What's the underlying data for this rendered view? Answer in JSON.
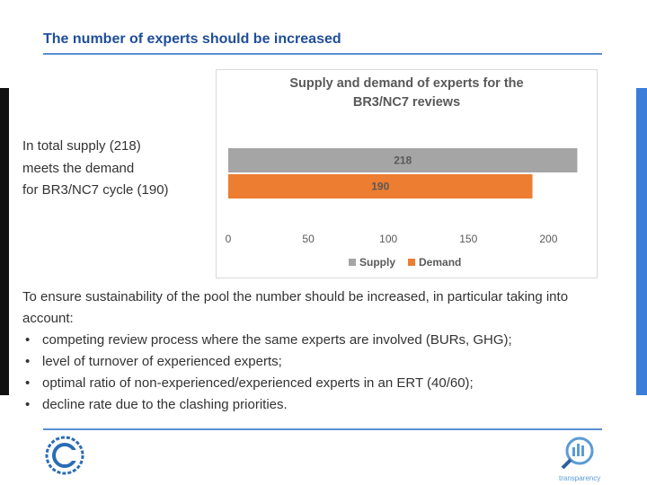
{
  "slide_title": "The number of experts should be increased",
  "summary": "In total supply (218)\nmeets the demand\nfor BR3/NC7 cycle (190)",
  "paragraph": "To ensure sustainability of the pool the number should be increased, in particular taking into account:",
  "bullets": [
    "competing review process where the same experts are involved (BURs, GHG);",
    "level of  turnover of experienced experts;",
    "optimal ratio of non-experienced/experienced experts in an ERT (40/60);",
    "decline rate due to the clashing priorities."
  ],
  "logo_caption": "transparency",
  "chart_data": {
    "type": "hbar",
    "title": "Supply and demand of experts for the\nBR3/NC7 reviews",
    "categories": [
      "Supply",
      "Demand"
    ],
    "values": [
      218,
      190
    ],
    "colors": [
      "#a5a5a5",
      "#ed7d31"
    ],
    "xlim": [
      0,
      220
    ],
    "xticks": [
      0,
      50,
      100,
      150,
      200
    ],
    "legend": "bottom",
    "data_labels": true
  }
}
